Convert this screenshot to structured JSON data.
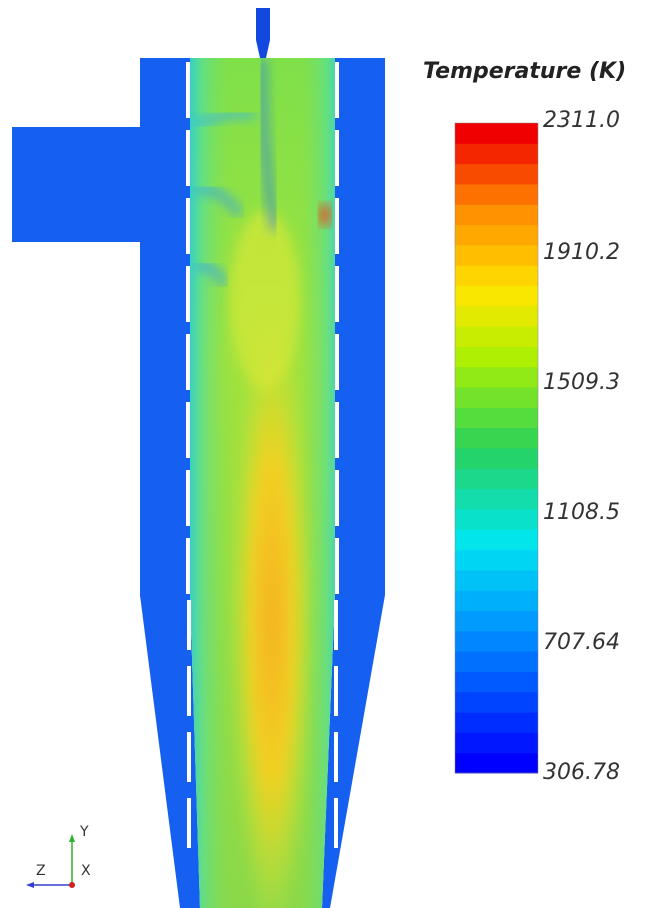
{
  "legend": {
    "title": "Temperature (K)",
    "tick_labels": [
      "2311.0",
      "1910.2",
      "1509.3",
      "1108.5",
      "707.64",
      "306.78"
    ]
  },
  "triad": {
    "y": "Y",
    "z": "Z",
    "x": "X"
  }
}
